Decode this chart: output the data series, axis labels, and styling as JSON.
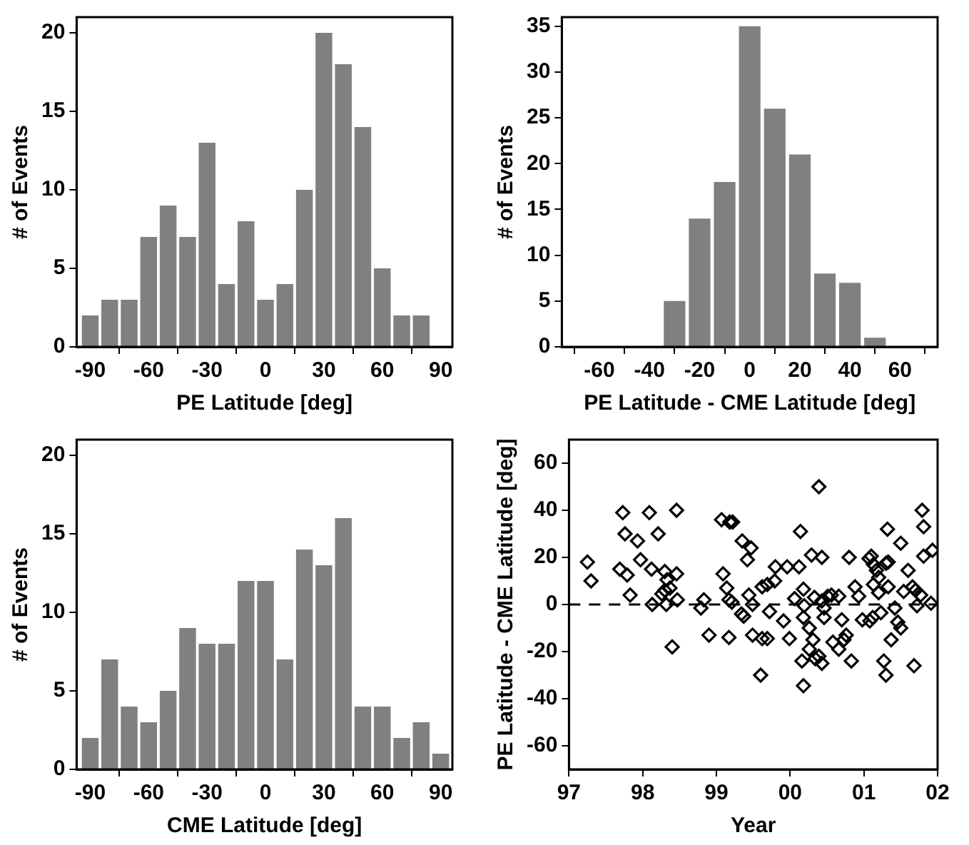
{
  "chart_data": [
    {
      "type": "histogram",
      "xlabel": "PE Latitude [deg]",
      "ylabel": "# of Events",
      "color": "#808080",
      "bins": [
        -95,
        -85,
        -75,
        -65,
        -55,
        -45,
        -35,
        -25,
        -15,
        -5,
        5,
        15,
        25,
        35,
        45,
        55,
        65,
        75,
        85
      ],
      "values": [
        2,
        3,
        3,
        7,
        9,
        7,
        13,
        4,
        8,
        3,
        4,
        10,
        20,
        18,
        14,
        5,
        2,
        2
      ],
      "xlim": [
        -97,
        96
      ],
      "xticks": [
        -90,
        -60,
        -30,
        0,
        30,
        60,
        90
      ],
      "ylim": [
        0,
        21
      ],
      "yticks": [
        0,
        5,
        10,
        15,
        20
      ]
    },
    {
      "type": "histogram",
      "xlabel": "PE Latitude - CME Latitude [deg]",
      "ylabel": "# of Events",
      "color": "#808080",
      "bins": [
        -35,
        -25,
        -15,
        -5,
        5,
        15,
        25,
        35,
        45,
        55
      ],
      "values": [
        5,
        14,
        18,
        35,
        26,
        21,
        8,
        7,
        1
      ],
      "xlim": [
        -75,
        75
      ],
      "xticks": [
        -60,
        -40,
        -20,
        0,
        20,
        40,
        60
      ],
      "ylim": [
        0,
        36
      ],
      "yticks": [
        0,
        5,
        10,
        15,
        20,
        25,
        30,
        35
      ]
    },
    {
      "type": "histogram",
      "xlabel": "CME Latitude [deg]",
      "ylabel": "# of Events",
      "color": "#808080",
      "bins": [
        -95,
        -85,
        -75,
        -65,
        -55,
        -45,
        -35,
        -25,
        -15,
        -5,
        5,
        15,
        25,
        35,
        45,
        55,
        65,
        75,
        85,
        95
      ],
      "values": [
        2,
        7,
        4,
        3,
        5,
        9,
        8,
        8,
        12,
        12,
        7,
        14,
        13,
        16,
        4,
        4,
        2,
        3,
        1
      ],
      "xlim": [
        -97,
        96
      ],
      "xticks": [
        -90,
        -60,
        -30,
        0,
        30,
        60,
        90
      ],
      "ylim": [
        0,
        21
      ],
      "yticks": [
        0,
        5,
        10,
        15,
        20
      ]
    },
    {
      "type": "scatter",
      "xlabel": "Year",
      "ylabel": "PE Latitude - CME Latitude [deg]",
      "color": "#000000",
      "marker": "diamond",
      "x": [
        1997.25,
        1997.3,
        1997.73,
        1997.76,
        1997.69,
        1997.79,
        1997.93,
        1997.83,
        1997.97,
        1998.09,
        1998.21,
        1998.12,
        1998.13,
        1998.3,
        1998.33,
        1998.46,
        1998.46,
        1998.26,
        1998.3,
        1998.37,
        1998.32,
        1998.47,
        1998.4,
        1998.83,
        1998.79,
        1998.9,
        1999.07,
        1999.18,
        1999.22,
        1999.09,
        1999.14,
        1999.17,
        1999.21,
        1999.17,
        1999.35,
        1999.42,
        1999.47,
        1999.34,
        1999.37,
        1999.44,
        1999.49,
        1999.49,
        1999.6,
        1999.62,
        1999.69,
        1999.72,
        1999.79,
        1999.62,
        1999.69,
        1999.91,
        1999.8,
        1999.96,
        2000.12,
        1999.99,
        2000.14,
        2000.39,
        2000.29,
        2000.43,
        2000.06,
        2000.18,
        2000.19,
        2000.18,
        2000.26,
        2000.33,
        2000.43,
        2000.46,
        2000.51,
        2000.56,
        2000.66,
        2000.46,
        2000.31,
        2000.26,
        2000.39,
        2000.34,
        2000.43,
        2000.16,
        2000.58,
        2000.73,
        2000.66,
        2000.76,
        2000.83,
        2000.18,
        2000.7,
        2000.8,
        2000.88,
        2000.93,
        2000.98,
        2001.08,
        2001.07,
        2001.1,
        2001.13,
        2001.17,
        2001.2,
        2001.3,
        2001.33,
        2001.13,
        2001.2,
        2001.12,
        2001.23,
        2001.33,
        2001.32,
        2001.5,
        2001.42,
        2001.46,
        2001.5,
        2001.37,
        2001.27,
        2001.3,
        2001.68,
        2001.6,
        2001.66,
        2001.7,
        2001.77,
        2001.54,
        2001.72,
        2001.81,
        2001.79,
        2001.81,
        2001.93,
        2001.91
      ],
      "values": [
        18,
        10,
        39,
        30,
        15,
        12.5,
        27,
        4,
        19,
        39,
        30,
        15,
        0,
        14,
        10.5,
        40,
        13,
        4.5,
        6,
        7,
        0,
        2,
        -18,
        2,
        -1.5,
        -13,
        36,
        35,
        35,
        13,
        7,
        2,
        1,
        -14,
        27,
        19,
        24,
        -4,
        -5,
        4,
        0,
        -13,
        -30,
        7.5,
        8.5,
        -3,
        10,
        -14.5,
        -14.5,
        -7,
        16,
        16,
        16,
        -14.5,
        31,
        50,
        21,
        20,
        2.5,
        6.5,
        -0.5,
        -5.5,
        -10,
        3,
        1.5,
        -1.5,
        3.5,
        4,
        3.5,
        -5.5,
        -15,
        -19,
        -22,
        -23,
        -25,
        -24,
        -16,
        -15,
        -19,
        -13,
        -24,
        -34.5,
        -6.5,
        20,
        7.5,
        3.5,
        -6.5,
        -7,
        19.5,
        20.5,
        17,
        14.5,
        11.5,
        17.5,
        18,
        8.5,
        5,
        -5.5,
        -3.5,
        7.5,
        32,
        26,
        -1.5,
        -7.5,
        -10,
        -15,
        -24,
        -30,
        -26,
        14.5,
        7.5,
        6,
        4,
        5.5,
        -0.5,
        20.5,
        40,
        33,
        23,
        0.5
      ],
      "ref_lines": [
        {
          "axis": "y",
          "value": 0,
          "line_style": "dashed",
          "color": "#000000"
        }
      ],
      "xlim": [
        1997,
        2002
      ],
      "xticks": [
        {
          "value": 1997,
          "label": "97"
        },
        {
          "value": 1998,
          "label": "98"
        },
        {
          "value": 1999,
          "label": "99"
        },
        {
          "value": 2000,
          "label": "00"
        },
        {
          "value": 2001,
          "label": "01"
        },
        {
          "value": 2002,
          "label": "02"
        }
      ],
      "ylim": [
        -70,
        70
      ],
      "yticks": [
        -60,
        -40,
        -20,
        0,
        20,
        40,
        60
      ]
    }
  ]
}
